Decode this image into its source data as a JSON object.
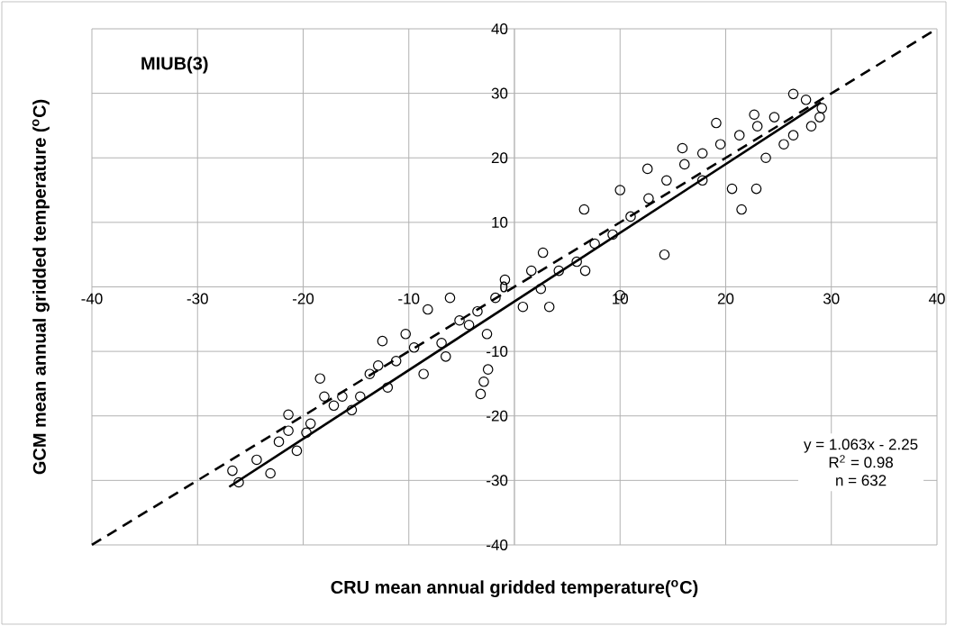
{
  "chart_data": {
    "type": "scatter",
    "xlabel": "CRU mean annual gridded temperature($^{o}$C)",
    "ylabel": "GCM  mean annual gridded temperature ($^{o}$C)",
    "xlim": [
      -40,
      40
    ],
    "ylim": [
      -40,
      40
    ],
    "xticks": [
      -40,
      -30,
      -20,
      -10,
      {
        "value": 0,
        "label": null
      },
      10,
      20,
      30,
      40
    ],
    "yticks": [
      -40,
      -30,
      -20,
      -10,
      0,
      10,
      20,
      30,
      40
    ],
    "grid": true,
    "annotations": [
      "MIUB(3)",
      "y = 1.063x - 2.25",
      "R$^{2}$ = 0.98",
      "n = 632"
    ],
    "series": [
      {
        "type": "scatter",
        "color": "#000000",
        "marker": "circle",
        "x": [
          10,
          12.6,
          14.2,
          19.1,
          21.5,
          20.6,
          22.9,
          22.7,
          26.4,
          29.1,
          28.9,
          26.4,
          23.8,
          16.1,
          15.9,
          6.6,
          2.7,
          -0.9,
          -2.6,
          -2.9,
          -3.2,
          -2.5,
          -12.5,
          -8.2,
          -6.1,
          -10.3,
          -12.9,
          -16.3,
          -18.4,
          -21.4,
          -21.4,
          -22.3,
          -24.4,
          -26.1,
          -26.7,
          -23.1,
          -20.6,
          -19.3,
          -15.4,
          -12,
          -8.6,
          -6.5,
          -4.3,
          0.8,
          2.5,
          4.2,
          5.9,
          7.6,
          9.3,
          11,
          12.7,
          14.4,
          17.8,
          19.5,
          21.3,
          23,
          24.6,
          27.6,
          25.5,
          28.1,
          17.8,
          6.7,
          3.3,
          1.6,
          -1.8,
          -3.5,
          -5.2,
          -6.9,
          -9.5,
          -11.2,
          -13.7,
          -14.6,
          -17.1,
          -18,
          -19.7,
          10
        ],
        "values": [
          15,
          18.3,
          5,
          25.4,
          12,
          15.2,
          15.2,
          26.7,
          29.9,
          27.7,
          26.3,
          23.5,
          20,
          19,
          21.5,
          12,
          5.3,
          1.1,
          -7.3,
          -14.7,
          -16.6,
          -12.8,
          -8.4,
          -3.5,
          -1.7,
          -7.3,
          -12.2,
          -17,
          -14.2,
          -19.8,
          -22.3,
          -24,
          -26.8,
          -30.3,
          -28.5,
          -28.9,
          -25.4,
          -21.2,
          -19.1,
          -15.6,
          -13.5,
          -10.8,
          -5.9,
          -3.1,
          -0.3,
          2.5,
          3.9,
          6.7,
          8.1,
          10.9,
          13.7,
          16.5,
          20.7,
          22.1,
          23.5,
          24.9,
          26.3,
          29,
          22.1,
          24.9,
          16.5,
          2.5,
          -3.1,
          2.5,
          -1.7,
          -3.8,
          -5.2,
          -8.7,
          -9.4,
          -11.5,
          -13.5,
          -17,
          -18.4,
          -17,
          -22.6,
          -1.3
        ]
      },
      {
        "type": "line",
        "color": "#000000",
        "line_style": "solid",
        "x": [
          -27,
          29
        ],
        "values": [
          -31,
          28.6
        ]
      },
      {
        "type": "line",
        "color": "#000000",
        "line_style": "dashed",
        "x": [
          -40,
          40
        ],
        "values": [
          -40,
          40
        ]
      }
    ]
  }
}
